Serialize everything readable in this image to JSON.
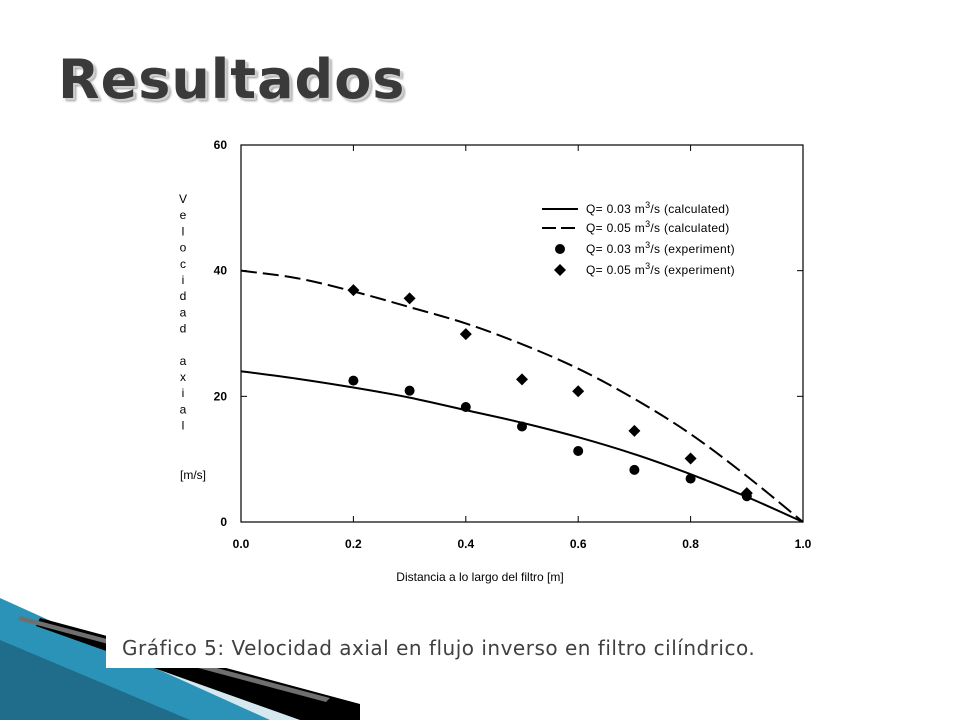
{
  "slide": {
    "title": "Resultados",
    "caption": "Gráfico 5: Velocidad axial en flujo inverso en filtro cilíndrico."
  },
  "chart_data": {
    "type": "line",
    "title": "",
    "xlabel": "Distancia a lo largo del filtro [m]",
    "ylabel": "Velocidad axial",
    "yunit": "[m/s]",
    "xlim": [
      0,
      1
    ],
    "ylim": [
      0,
      60
    ],
    "x_ticks": [
      "0.0",
      "0.2",
      "0.4",
      "0.6",
      "0.8",
      "1.0"
    ],
    "y_ticks": [
      "0",
      "20",
      "40",
      "60"
    ],
    "legend_position": "top-right",
    "legend": [
      {
        "pre": "Q= 0.03 m",
        "sup": "3",
        "post": "/s (calculated)",
        "marker": "solid-line"
      },
      {
        "pre": "Q= 0.05 m",
        "sup": "3",
        "post": "/s (calculated)",
        "marker": "dashed-line"
      },
      {
        "pre": "Q= 0.03 m",
        "sup": "3",
        "post": "/s (experiment)",
        "marker": "circle"
      },
      {
        "pre": "Q= 0.05 m",
        "sup": "3",
        "post": "/s (experiment)",
        "marker": "diamond"
      }
    ],
    "series": [
      {
        "kind": "line",
        "style": "solid",
        "x": [
          0,
          0.1,
          0.2,
          0.3,
          0.4,
          0.5,
          0.6,
          0.7,
          0.8,
          0.9,
          1.0
        ],
        "y": [
          24,
          22.8,
          21.4,
          19.8,
          17.8,
          15.8,
          13.5,
          10.8,
          7.6,
          4.0,
          0
        ]
      },
      {
        "kind": "line",
        "style": "dashed",
        "x": [
          0,
          0.1,
          0.2,
          0.3,
          0.4,
          0.5,
          0.6,
          0.7,
          0.8,
          0.9,
          1.0
        ],
        "y": [
          40,
          38.8,
          36.7,
          34.2,
          31.6,
          28.3,
          24.4,
          19.6,
          14.0,
          7.3,
          0
        ]
      },
      {
        "kind": "scatter",
        "marker": "circle",
        "x": [
          0.2,
          0.3,
          0.4,
          0.5,
          0.6,
          0.7,
          0.8,
          0.9
        ],
        "y": [
          22.5,
          20.9,
          18.3,
          15.2,
          11.3,
          8.3,
          6.9,
          4.1
        ]
      },
      {
        "kind": "scatter",
        "marker": "diamond",
        "x": [
          0.2,
          0.3,
          0.4,
          0.5,
          0.6,
          0.7,
          0.8,
          0.9
        ],
        "y": [
          36.9,
          35.6,
          29.9,
          22.7,
          20.8,
          14.5,
          10.1,
          4.6
        ]
      }
    ]
  }
}
